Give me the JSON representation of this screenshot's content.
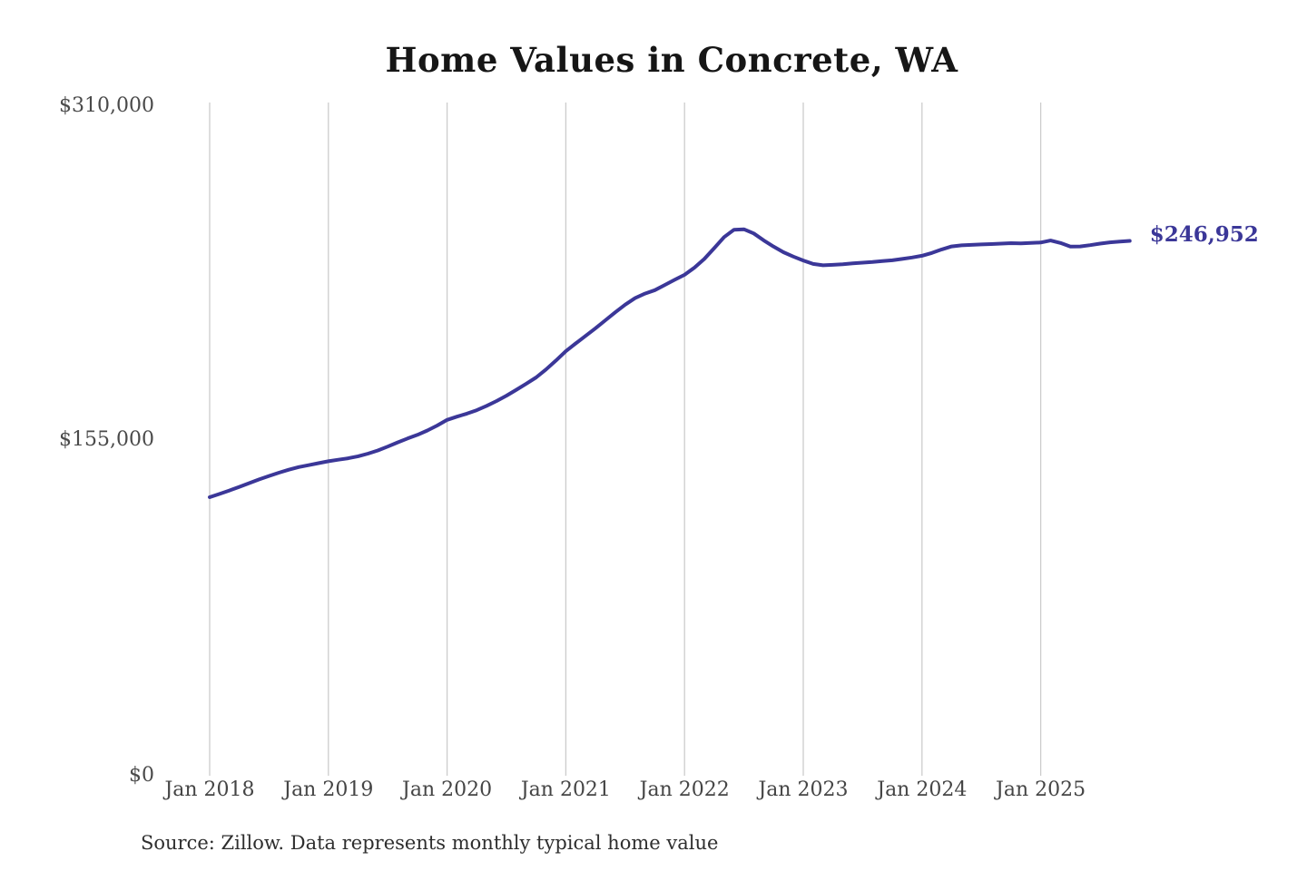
{
  "title": "Home Values in Concrete, WA",
  "source_note": "Source: Zillow. Data represents monthly typical home value",
  "current_value_label": "$246,952",
  "colors": {
    "line": "#3b3798",
    "annotation": "#3b3798",
    "grid": "#cccccc",
    "title_text": "#161616",
    "axis_text": "#4a4a4a",
    "background": "#ffffff"
  },
  "chart_data": {
    "type": "line",
    "title": "Home Values in Concrete, WA",
    "xlabel": "",
    "ylabel": "",
    "ylim": [
      0,
      310000
    ],
    "y_ticks": [
      0,
      155000,
      310000
    ],
    "y_tick_labels": [
      "$0",
      "$155,000",
      "$310,000"
    ],
    "x_tick_labels": [
      "Jan 2018",
      "Jan 2019",
      "Jan 2020",
      "Jan 2021",
      "Jan 2022",
      "Jan 2023",
      "Jan 2024",
      "Jan 2025"
    ],
    "grid": "vertical-only",
    "legend": "none",
    "end_annotation": "$246,952",
    "series": [
      {
        "name": "Monthly typical home value (USD)",
        "frequency": "monthly",
        "start_month": "2018-01",
        "end_month": "2025-10",
        "values": [
          128600,
          130100,
          131700,
          133400,
          135100,
          136800,
          138400,
          139900,
          141300,
          142500,
          143400,
          144300,
          145200,
          145900,
          146600,
          147500,
          148700,
          150200,
          152000,
          153900,
          155700,
          157400,
          159400,
          161700,
          164300,
          165800,
          167200,
          168800,
          170800,
          173000,
          175500,
          178200,
          181000,
          183900,
          187600,
          191700,
          196000,
          199600,
          203100,
          206600,
          210300,
          214000,
          217500,
          220500,
          222600,
          224200,
          226600,
          229000,
          231300,
          234600,
          238600,
          243600,
          248700,
          252100,
          252300,
          250400,
          247200,
          244300,
          241700,
          239700,
          237900,
          236300,
          235700,
          235900,
          236200,
          236600,
          236900,
          237200,
          237600,
          238000,
          238600,
          239300,
          240100,
          241400,
          243000,
          244400,
          244900,
          245100,
          245300,
          245500,
          245700,
          245900,
          245800,
          246000,
          246200,
          247100,
          246000,
          244300,
          244400,
          245000,
          245700,
          246300,
          246600,
          246952
        ]
      }
    ]
  }
}
